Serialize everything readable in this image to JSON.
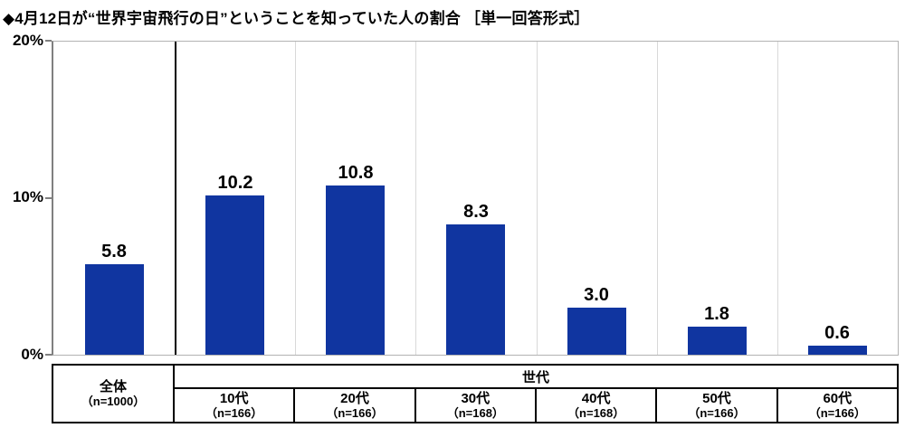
{
  "title": "◆4月12日が“世界宇宙飛行の日”ということを知っていた人の割合 ［単一回答形式］",
  "chart_data": {
    "type": "bar",
    "title": "4月12日が“世界宇宙飛行の日”ということを知っていた人の割合",
    "question_format": "単一回答形式",
    "categories": [
      "全体",
      "10代",
      "20代",
      "30代",
      "40代",
      "50代",
      "60代"
    ],
    "sample_labels": [
      "（n=1000）",
      "（n=166）",
      "（n=166）",
      "（n=168）",
      "（n=168）",
      "（n=166）",
      "（n=166）"
    ],
    "values": [
      5.8,
      10.2,
      10.8,
      8.3,
      3.0,
      1.8,
      0.6
    ],
    "unit": "%",
    "ylim": [
      0,
      20
    ],
    "ytick_labels": [
      "20%",
      "10%",
      "0%"
    ],
    "group_header": "世代",
    "bar_color": "#1035a0",
    "grid": "vertical-column-separators",
    "legend": "none"
  }
}
